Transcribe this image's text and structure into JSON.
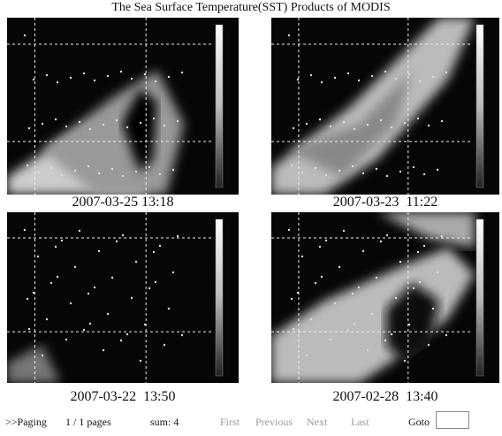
{
  "header": {
    "title": "The Sea Surface Temperature(SST) Products of MODIS"
  },
  "images": [
    {
      "caption": "2007-03-25 13:18"
    },
    {
      "caption": "2007-03-23  11:22"
    },
    {
      "caption": "2007-03-22  13:50"
    },
    {
      "caption": "2007-02-28  13:40"
    }
  ],
  "paging": {
    "label": ">>Paging",
    "pages": "1 / 1 pages",
    "sum": "sum: 4",
    "links": [
      "First",
      "Previous",
      "Next",
      "Last"
    ],
    "goto": "Goto"
  }
}
